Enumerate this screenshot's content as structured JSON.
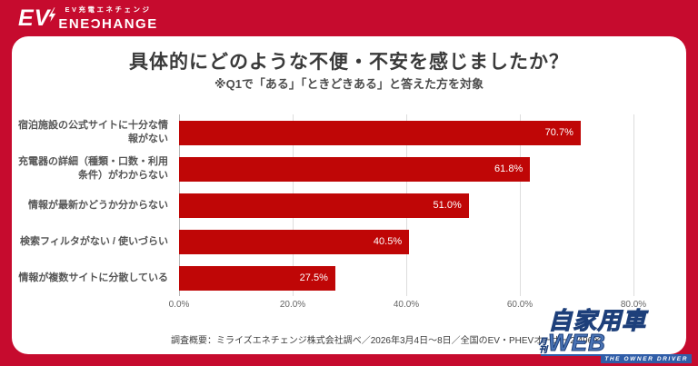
{
  "brand": {
    "ev_mark": "EV",
    "logo_small_text": "EV充電エネチェンジ",
    "logo_main_text": "ENEƆHANGE"
  },
  "header": {
    "title": "具体的にどのような不便・不安を感じましたか？",
    "subtitle": "※Q1で「ある」「ときどきある」と答えた方を対象"
  },
  "chart_data": {
    "type": "bar",
    "orientation": "horizontal",
    "categories": [
      "宿泊施設の公式サイトに十分な情報がない",
      "充電器の詳細（種類・口数・利用条件）がわからない",
      "情報が最新かどうか分からない",
      "検索フィルタがない / 使いづらい",
      "情報が複数サイトに分散している"
    ],
    "values": [
      70.7,
      61.8,
      51.0,
      40.5,
      27.5
    ],
    "value_labels": [
      "70.7%",
      "61.8%",
      "51.0%",
      "40.5%",
      "27.5%"
    ],
    "x_ticks": [
      "0.0%",
      "20.0%",
      "40.0%",
      "60.0%",
      "80.0%"
    ],
    "xlim": [
      0,
      80
    ],
    "grid": true,
    "legend": "none",
    "bar_color": "#bf0606"
  },
  "footer": {
    "source_text": "調査概要：ミライズエネチェンジ株式会社調べ／2026年3月4日～8日／全国のEV・PHEVオーナー2,496名"
  },
  "watermark": {
    "prefix": "月刊",
    "main": "自家用車WEB",
    "tagline": "THE OWNER DRIVER"
  },
  "colors": {
    "frame_red": "#c60b2e",
    "bar_red": "#bf0606",
    "watermark_blue": "#2f5da8"
  }
}
